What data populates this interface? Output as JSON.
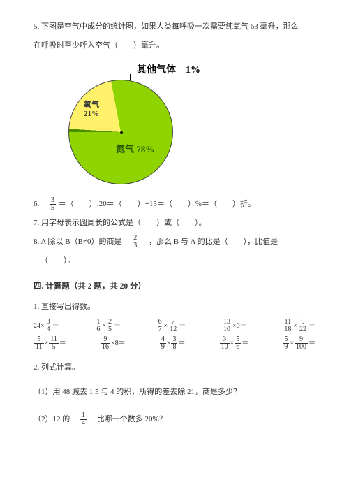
{
  "q5": {
    "text_a": "5. 下图是空气中成分的统计图，如果人类每呼吸一次需要纯氧气 63 毫升，那么",
    "text_b": "在呼吸时至少呼入空气（　　）毫升。",
    "pie": {
      "other_label": "其他气体　1%",
      "oxygen_label": "氧气",
      "oxygen_pct": "21%",
      "nitrogen_label": "氮气 78%",
      "colors": {
        "nitrogen": "#8fd400",
        "oxygen": "#fff26a",
        "other": "#4a8f00"
      },
      "slices_deg": {
        "start": -90,
        "other_end": -86.4,
        "oxygen_end": -10.8,
        "nitrogen_end": 270
      }
    }
  },
  "q6": {
    "pre": "6.　",
    "frac_n": "3",
    "frac_d": "5",
    "rest": "＝（　　）:20＝（　　）÷15＝（　　）%＝（　　）折。"
  },
  "q7": "7. 用字母表示圆周长的公式是（　　）或（　　）。",
  "q8": {
    "a": "8. A 除以 B（B≠0）的商是　",
    "frac_n": "2",
    "frac_d": "3",
    "b": "　，那么 B 与 A 的比是（　　），比值是",
    "c": "（　　）。"
  },
  "section4_title": "四. 计算题（共 2 题，共 20 分）",
  "calc1_title": "1. 直接写出得数。",
  "row1": [
    {
      "a": "24×",
      "n": "3",
      "d": "4",
      "post": "＝"
    },
    {
      "n1": "1",
      "d1": "6",
      "mid": "×",
      "n2": "2",
      "d2": "5",
      "post": "＝"
    },
    {
      "n1": "6",
      "d1": "7",
      "mid": "×",
      "n2": "7",
      "d2": "12",
      "post": "＝"
    },
    {
      "n1": "13",
      "d1": "10",
      "mid": "×0＝",
      "plain": true
    },
    {
      "n1": "11",
      "d1": "18",
      "mid": "×",
      "n2": "9",
      "d2": "22",
      "post": "＝"
    }
  ],
  "row2": [
    {
      "n1": "5",
      "d1": "11",
      "mid": "×",
      "n2": "11",
      "d2": "5",
      "post": "＝"
    },
    {
      "n1": "9",
      "d1": "16",
      "mid": "×8＝",
      "plain": true
    },
    {
      "n1": "4",
      "d1": "9",
      "mid": "×",
      "n2": "3",
      "d2": "8",
      "post": "＝"
    },
    {
      "n1": "3",
      "d1": "10",
      "mid": "×",
      "n2": "5",
      "d2": "6",
      "post": "＝"
    },
    {
      "n1": "5",
      "d1": "9",
      "mid": "×",
      "n2": "9",
      "d2": "100",
      "post": "＝"
    }
  ],
  "calc2_title": "2. 列式计算。",
  "calc2_1": "（1）用 48 减去 1.5 与 4 的积，所得的差去除 21，商是多少？",
  "calc2_2a": "（2）12 的　",
  "calc2_2_n": "1",
  "calc2_2_d": "4",
  "calc2_2b": "　比哪一个数多 20%？"
}
